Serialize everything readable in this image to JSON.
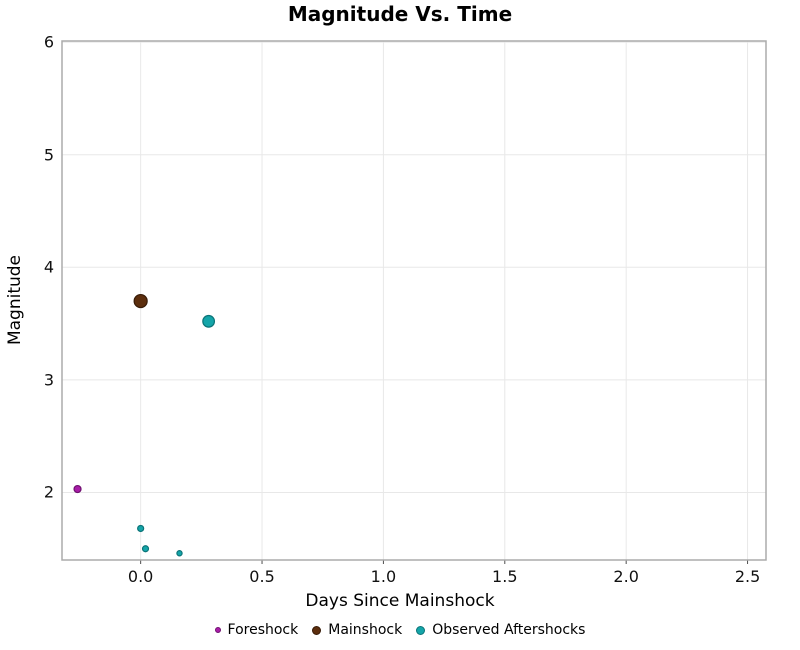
{
  "chart_data": {
    "type": "scatter",
    "title": "Magnitude Vs. Time",
    "xlabel": "Days Since Mainshock",
    "ylabel": "Magnitude",
    "xlim": [
      -0.324,
      2.576
    ],
    "ylim": [
      1.4,
      6.01
    ],
    "x_ticks": [
      0.0,
      0.5,
      1.0,
      1.5,
      2.0,
      2.5
    ],
    "x_tick_labels": [
      "0.0",
      "0.5",
      "1.0",
      "1.5",
      "2.0",
      "2.5"
    ],
    "y_ticks": [
      2,
      3,
      4,
      5,
      6
    ],
    "y_tick_labels": [
      "2",
      "3",
      "4",
      "5",
      "6"
    ],
    "grid": true,
    "legend_position": "bottom",
    "theme": {
      "background": "#ffffff",
      "grid_color": "#e8e8e8",
      "border_color": "#ababab",
      "tick_mark_color": "#4d4d4d",
      "text_color": "#000000"
    },
    "series": [
      {
        "id": "foreshock",
        "name": "Foreshock",
        "color": "#a81ca8",
        "edge_color": "#6f116f",
        "legend_r": 3,
        "points": [
          {
            "x": -0.26,
            "y": 2.03,
            "r": 3.5
          }
        ]
      },
      {
        "id": "mainshock",
        "name": "Mainshock",
        "color": "#5c2e0d",
        "edge_color": "#371b07",
        "legend_r": 4.5,
        "points": [
          {
            "x": 0.0,
            "y": 3.7,
            "r": 6.5
          }
        ]
      },
      {
        "id": "observed-aftershocks",
        "name": "Observed Aftershocks",
        "color": "#14a5a9",
        "edge_color": "#0c7478",
        "legend_r": 4.5,
        "points": [
          {
            "x": 0.28,
            "y": 3.52,
            "r": 5.8
          },
          {
            "x": 0.0,
            "y": 1.68,
            "r": 3.0
          },
          {
            "x": 0.02,
            "y": 1.5,
            "r": 3.0
          },
          {
            "x": 0.16,
            "y": 1.46,
            "r": 2.6
          }
        ]
      }
    ]
  }
}
